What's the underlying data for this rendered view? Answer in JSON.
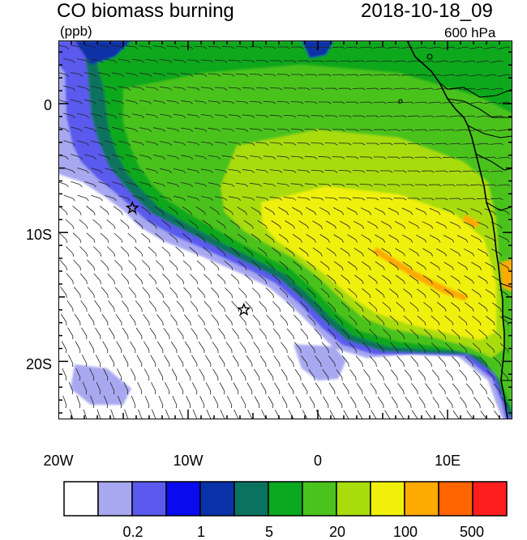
{
  "header": {
    "title": "CO biomass burning",
    "datetime": "2018-10-18_09",
    "units": "(ppb)",
    "level": "600 hPa"
  },
  "axes": {
    "y_ticks": [
      {
        "label": "0",
        "lat": 0
      },
      {
        "label": "10S",
        "lat": -10
      },
      {
        "label": "20S",
        "lat": -20
      }
    ],
    "x_ticks": [
      {
        "label": "20W",
        "lon": -20
      },
      {
        "label": "10W",
        "lon": -10
      },
      {
        "label": "0",
        "lon": 0
      },
      {
        "label": "10E",
        "lon": 10
      }
    ],
    "lon_range": [
      -20,
      15
    ],
    "lat_range": [
      -24.5,
      4.9
    ]
  },
  "colorbar": {
    "colors": [
      "#ffffff",
      "#a8a8f0",
      "#5a5aee",
      "#0a0aee",
      "#0a32a8",
      "#0a735f",
      "#0aa81e",
      "#4ac31e",
      "#a8dc0a",
      "#f0f00a",
      "#ffaa00",
      "#ff6400",
      "#ff1e1e"
    ],
    "labels": [
      {
        "text": "0.2",
        "boundary": 2
      },
      {
        "text": "1",
        "boundary": 4
      },
      {
        "text": "5",
        "boundary": 6
      },
      {
        "text": "20",
        "boundary": 8
      },
      {
        "text": "100",
        "boundary": 10
      },
      {
        "text": "500",
        "boundary": 12
      }
    ]
  },
  "markers": [
    {
      "type": "star",
      "lon": -14.3,
      "lat": -8.1
    },
    {
      "type": "star",
      "lon": -5.7,
      "lat": -16.0
    }
  ]
}
